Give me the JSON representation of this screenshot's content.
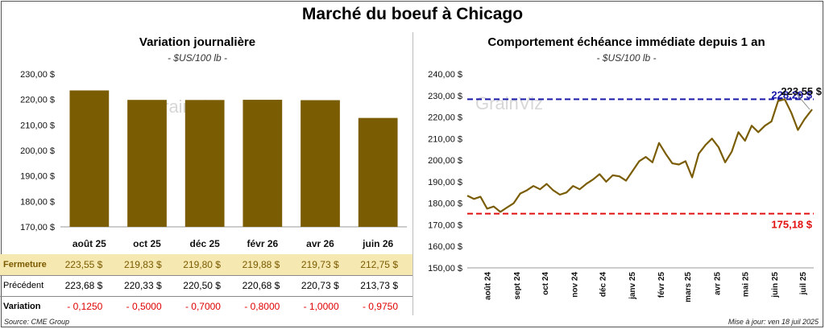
{
  "title": "Marché du boeuf à Chicago",
  "left_panel": {
    "title": "Variation journalière",
    "unit": "- $US/100 lb -"
  },
  "right_panel": {
    "title": "Comportement échéance immédiate depuis 1 an",
    "unit": "- $US/100 lb -"
  },
  "watermark": "GrainViz",
  "table": {
    "rows": [
      {
        "label": "Fermeture",
        "values": [
          "223,55",
          "219,83",
          "219,80",
          "219,88",
          "219,73",
          "212,75"
        ],
        "currency": "$"
      },
      {
        "label": "Précédent",
        "values": [
          "223,68",
          "220,33",
          "220,50",
          "220,68",
          "220,73",
          "213,73"
        ],
        "currency": "$"
      },
      {
        "label": "Variation",
        "values": [
          "- 0,1250",
          "- 0,5000",
          "- 0,7000",
          "- 0,8000",
          "- 1,0000",
          "- 0,9750"
        ],
        "currency": ""
      }
    ]
  },
  "footer": {
    "source": "Source: CME Group",
    "updated": "Mise à jour: ven 18 juil 2025"
  },
  "colors": {
    "bar": "#7a5c02",
    "line": "#7a5c02",
    "high_line": "#1a1aa8",
    "low_line": "#e01010",
    "table_highlight": "#f6e8b1"
  },
  "chart_data": [
    {
      "type": "bar",
      "categories": [
        "août 25",
        "oct 25",
        "déc 25",
        "févr 26",
        "avr 26",
        "juin 26"
      ],
      "values": [
        223.55,
        219.83,
        219.8,
        219.88,
        219.73,
        212.75
      ],
      "ylim": [
        170,
        230
      ],
      "yticks": [
        "170,00 $",
        "180,00 $",
        "190,00 $",
        "200,00 $",
        "210,00 $",
        "220,00 $",
        "230,00 $"
      ],
      "grid": false
    },
    {
      "type": "line",
      "xlabels": [
        "août 24",
        "sept 24",
        "oct 24",
        "nov 24",
        "déc 24",
        "janv 25",
        "févr 25",
        "mars 25",
        "avr 25",
        "mai 25",
        "juin 25",
        "juil 25"
      ],
      "ylim": [
        150,
        240
      ],
      "yticks": [
        "150,00 $",
        "160,00 $",
        "170,00 $",
        "180,00 $",
        "190,00 $",
        "200,00 $",
        "210,00 $",
        "220,00 $",
        "230,00 $",
        "240,00 $"
      ],
      "x": [
        "2024-07-18",
        "2024-07-25",
        "2024-08-01",
        "2024-08-08",
        "2024-08-15",
        "2024-08-22",
        "2024-08-29",
        "2024-09-05",
        "2024-09-12",
        "2024-09-19",
        "2024-09-26",
        "2024-10-03",
        "2024-10-10",
        "2024-10-17",
        "2024-10-24",
        "2024-10-31",
        "2024-11-07",
        "2024-11-14",
        "2024-11-21",
        "2024-11-28",
        "2024-12-05",
        "2024-12-12",
        "2024-12-19",
        "2024-12-26",
        "2025-01-02",
        "2025-01-09",
        "2025-01-16",
        "2025-01-23",
        "2025-01-30",
        "2025-02-06",
        "2025-02-13",
        "2025-02-20",
        "2025-02-27",
        "2025-03-06",
        "2025-03-13",
        "2025-03-20",
        "2025-03-27",
        "2025-04-03",
        "2025-04-10",
        "2025-04-17",
        "2025-04-24",
        "2025-05-01",
        "2025-05-08",
        "2025-05-15",
        "2025-05-22",
        "2025-05-29",
        "2025-06-05",
        "2025-06-12",
        "2025-06-19",
        "2025-06-26",
        "2025-07-03",
        "2025-07-10",
        "2025-07-18"
      ],
      "y": [
        183.5,
        182.0,
        183.0,
        177.5,
        178.5,
        176.0,
        178.0,
        180.0,
        184.5,
        186.0,
        188.0,
        186.5,
        189.0,
        186.0,
        184.0,
        185.0,
        188.0,
        186.5,
        189.0,
        191.0,
        193.5,
        190.0,
        193.0,
        192.5,
        190.5,
        195.0,
        199.5,
        201.5,
        199.0,
        208.0,
        203.0,
        198.5,
        198.0,
        199.5,
        192.0,
        203.0,
        207.0,
        210.0,
        206.0,
        199.0,
        204.0,
        213.0,
        209.0,
        216.0,
        213.0,
        216.0,
        218.0,
        227.5,
        228.29,
        222.0,
        214.0,
        219.0,
        223.55
      ],
      "reference_lines": [
        {
          "label": "228,29 $",
          "value": 228.29
        },
        {
          "label": "175,18 $",
          "value": 175.18
        }
      ],
      "last_label": "223,55 $",
      "grid": false
    }
  ]
}
